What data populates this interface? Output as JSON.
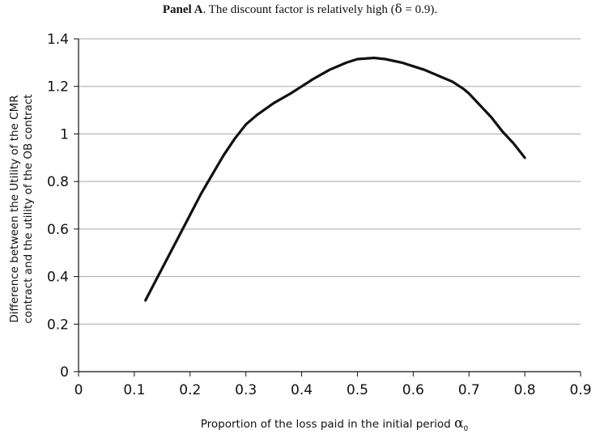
{
  "page_title": {
    "bold": "Panel A",
    "rest": ". The discount factor is relatively high (",
    "symbol": "δ",
    "value": " = 0.9)."
  },
  "chart_data": {
    "type": "line",
    "title": "Panel A. The discount factor is relatively high (δ = 0.9).",
    "xlabel": "Proportion of the loss paid in the initial period α0",
    "xlabel_text": "Proportion of the loss paid in the initial period ",
    "xlabel_symbol": "α",
    "xlabel_subscript": "0",
    "ylabel_line1": "Difference between the Utility of the CMR",
    "ylabel_line2": "contract and the utility of the OB contract",
    "xlim": [
      0,
      0.9
    ],
    "ylim": [
      0,
      1.4
    ],
    "xticks": [
      "0",
      "0.1",
      "0.2",
      "0.3",
      "0.4",
      "0.5",
      "0.6",
      "0.7",
      "0.8",
      "0.9"
    ],
    "yticks": [
      "0",
      "0.2",
      "0.4",
      "0.6",
      "0.8",
      "1",
      "1.2",
      "1.4"
    ],
    "grid": "horizontal",
    "line_color": "#111111",
    "series": [
      {
        "x": [
          0.12,
          0.14,
          0.16,
          0.18,
          0.2,
          0.22,
          0.24,
          0.26,
          0.28,
          0.3,
          0.32,
          0.35,
          0.38,
          0.4,
          0.42,
          0.45,
          0.48,
          0.5,
          0.53,
          0.55,
          0.58,
          0.6,
          0.62,
          0.65,
          0.67,
          0.69,
          0.7,
          0.72,
          0.74,
          0.76,
          0.78,
          0.8
        ],
        "y": [
          0.3,
          0.39,
          0.48,
          0.57,
          0.66,
          0.75,
          0.83,
          0.91,
          0.98,
          1.04,
          1.08,
          1.13,
          1.17,
          1.2,
          1.23,
          1.27,
          1.3,
          1.315,
          1.32,
          1.315,
          1.3,
          1.285,
          1.27,
          1.24,
          1.22,
          1.19,
          1.17,
          1.12,
          1.07,
          1.01,
          0.96,
          0.9
        ]
      }
    ]
  }
}
